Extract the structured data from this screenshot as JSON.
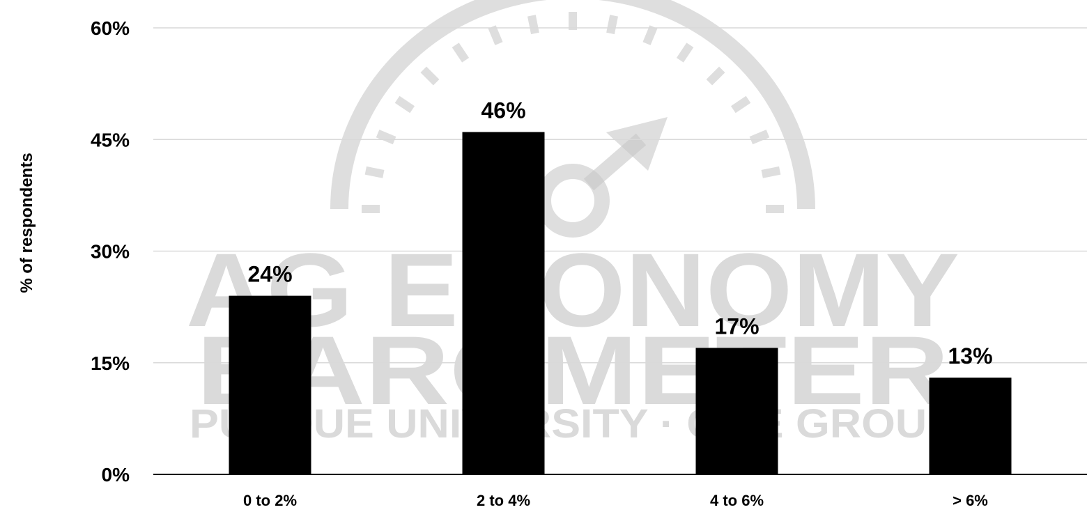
{
  "chart_data": {
    "type": "bar",
    "categories": [
      "0 to 2%",
      "2 to 4%",
      "4 to 6%",
      "> 6%"
    ],
    "values": [
      24,
      46,
      17,
      13
    ],
    "data_labels": [
      "24%",
      "46%",
      "17%",
      "13%"
    ],
    "title": "",
    "xlabel": "",
    "ylabel": "% of respondents",
    "ylim": [
      0,
      60
    ],
    "yticks": [
      0,
      15,
      30,
      45,
      60
    ],
    "ytick_labels": [
      "0%",
      "15%",
      "30%",
      "45%",
      "60%"
    ],
    "grid": true,
    "bar_color": "#000000",
    "grid_color": "#d9d9d9"
  },
  "watermark": {
    "line1": "AG ECONOMY",
    "line2": "BAROMETER",
    "line3": "PURDUE UNIVERSITY · CME GROUP",
    "color": "#bdbdbd"
  }
}
